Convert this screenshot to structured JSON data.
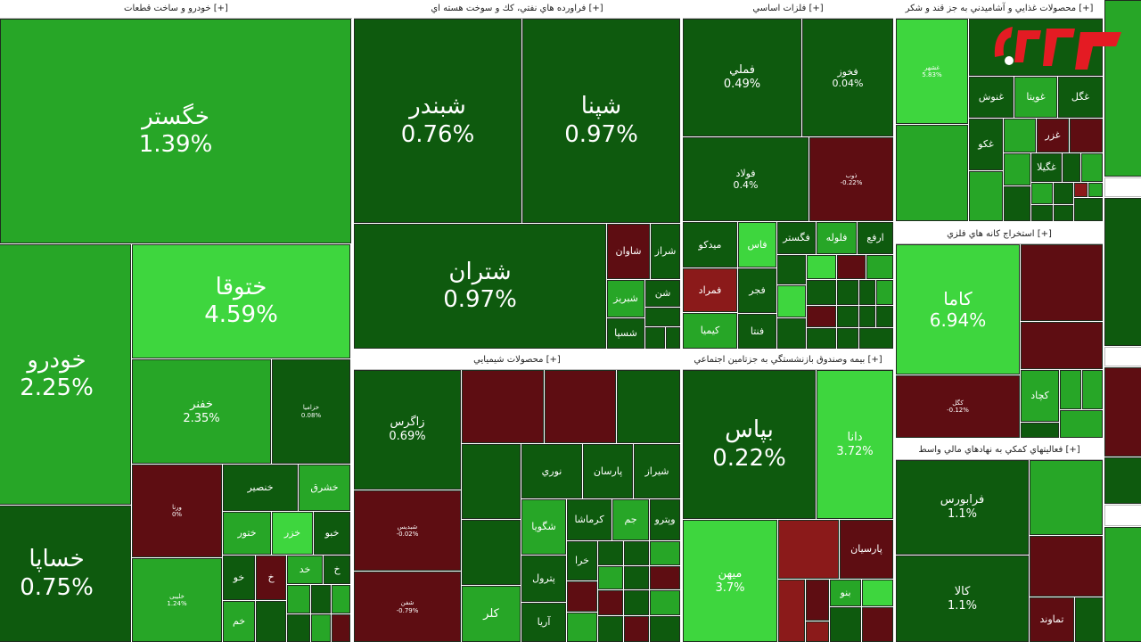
{
  "colors": {
    "dg": "#0e5a0e",
    "mg": "#1f8a1f",
    "g": "#27a627",
    "bg": "#3ed63e",
    "dr": "#5e0d12",
    "mr": "#8b1a1a",
    "logo_red": "#e41b23"
  },
  "sectors": [
    {
      "id": "auto",
      "title": "خودرو و ساخت قطعات [+]"
    },
    {
      "id": "oil",
      "title": "فراورده هاي نفتي، كك و سوخت هسته اي [+]"
    },
    {
      "id": "metal",
      "title": "فلزات اساسي [+]"
    },
    {
      "id": "food",
      "title": "محصولات غذايي و آشاميدني به جز قند و شكر [+]"
    },
    {
      "id": "chem",
      "title": "محصولات شيميايي [+]"
    },
    {
      "id": "ins",
      "title": "بيمه وصندوق بازنشستگي به جزتامين اجتماعي [+]"
    },
    {
      "id": "mine",
      "title": "استخراج كانه هاي فلزي [+]"
    },
    {
      "id": "fin",
      "title": "فعاليتهاي كمكي به نهادهاي مالي واسط [+]"
    }
  ],
  "tiles": [
    {
      "name": "خگستر",
      "pct": "1.39%",
      "c": "g"
    },
    {
      "name": "خودرو",
      "pct": "2.25%",
      "c": "g"
    },
    {
      "name": "ختوقا",
      "pct": "4.59%",
      "c": "bg"
    },
    {
      "name": "خساپا",
      "pct": "0.75%",
      "c": "dg"
    },
    {
      "name": "خفنر",
      "pct": "2.35%",
      "c": "g"
    },
    {
      "name": "خزامیا",
      "pct": "0.08%",
      "c": "dg"
    },
    {
      "name": "ورنا",
      "pct": "0%",
      "c": "dr"
    },
    {
      "name": "خنصير",
      "pct": "",
      "c": "dg"
    },
    {
      "name": "خشرق",
      "pct": "",
      "c": "g"
    },
    {
      "name": "ختور",
      "pct": "",
      "c": "g"
    },
    {
      "name": "خزر",
      "pct": "",
      "c": "bg"
    },
    {
      "name": "خبو",
      "pct": "",
      "c": "dg"
    },
    {
      "name": "خلیبی",
      "pct": "1.24%",
      "c": "g"
    },
    {
      "name": "خو",
      "pct": "",
      "c": "dg"
    },
    {
      "name": "خ",
      "pct": "",
      "c": "dr"
    },
    {
      "name": "خد",
      "pct": "",
      "c": "g"
    },
    {
      "name": "خ",
      "pct": "",
      "c": "dg"
    },
    {
      "name": "خم",
      "pct": "",
      "c": "g"
    },
    {
      "name": "شبندر",
      "pct": "0.76%",
      "c": "dg"
    },
    {
      "name": "شپنا",
      "pct": "0.97%",
      "c": "dg"
    },
    {
      "name": "شتران",
      "pct": "0.97%",
      "c": "dg"
    },
    {
      "name": "شاوان",
      "pct": "",
      "c": "dr"
    },
    {
      "name": "شراز",
      "pct": "",
      "c": "dg"
    },
    {
      "name": "شبریز",
      "pct": "",
      "c": "g"
    },
    {
      "name": "شن",
      "pct": "",
      "c": "dg"
    },
    {
      "name": "شسپا",
      "pct": "",
      "c": "dg"
    },
    {
      "name": "فملي",
      "pct": "0.49%",
      "c": "dg"
    },
    {
      "name": "فخوز",
      "pct": "0.04%",
      "c": "dg"
    },
    {
      "name": "فولاد",
      "pct": "0.4%",
      "c": "dg"
    },
    {
      "name": "ذوب",
      "pct": "-0.22%",
      "c": "dr"
    },
    {
      "name": "ميدكو",
      "pct": "",
      "c": "dg"
    },
    {
      "name": "فاس",
      "pct": "",
      "c": "bg"
    },
    {
      "name": "فگستر",
      "pct": "",
      "c": "dg"
    },
    {
      "name": "فلوله",
      "pct": "",
      "c": "g"
    },
    {
      "name": "ارفع",
      "pct": "",
      "c": "dg"
    },
    {
      "name": "فمراد",
      "pct": "",
      "c": "mr"
    },
    {
      "name": "فجر",
      "pct": "",
      "c": "dg"
    },
    {
      "name": "كيميا",
      "pct": "",
      "c": "g"
    },
    {
      "name": "فنتا",
      "pct": "",
      "c": "dg"
    },
    {
      "name": "زاگرس",
      "pct": "0.69%",
      "c": "dg"
    },
    {
      "name": "شبدیس",
      "pct": "-0.02%",
      "c": "dr"
    },
    {
      "name": "شفن",
      "pct": "-0.79%",
      "c": "dr"
    },
    {
      "name": "نوري",
      "pct": "",
      "c": "dg"
    },
    {
      "name": "پارسان",
      "pct": "",
      "c": "dg"
    },
    {
      "name": "شيراز",
      "pct": "",
      "c": "dg"
    },
    {
      "name": "شگويا",
      "pct": "",
      "c": "g"
    },
    {
      "name": "كرماشا",
      "pct": "",
      "c": "dg"
    },
    {
      "name": "جم",
      "pct": "",
      "c": "g"
    },
    {
      "name": "وپترو",
      "pct": "",
      "c": "dg"
    },
    {
      "name": "پترول",
      "pct": "",
      "c": "dg"
    },
    {
      "name": "كلر",
      "pct": "",
      "c": "g"
    },
    {
      "name": "آريا",
      "pct": "",
      "c": "dg"
    },
    {
      "name": "خرا",
      "pct": "",
      "c": "dg"
    },
    {
      "name": "بپاس",
      "pct": "0.22%",
      "c": "dg"
    },
    {
      "name": "دانا",
      "pct": "3.72%",
      "c": "bg"
    },
    {
      "name": "ميهن",
      "pct": "3.7%",
      "c": "bg"
    },
    {
      "name": "پارسيان",
      "pct": "",
      "c": "dr"
    },
    {
      "name": "بنو",
      "pct": "",
      "c": "g"
    },
    {
      "name": "كاما",
      "pct": "6.94%",
      "c": "bg"
    },
    {
      "name": "كگل",
      "pct": "-0.12%",
      "c": "dr"
    },
    {
      "name": "كچاد",
      "pct": "",
      "c": "g"
    },
    {
      "name": "غشهر",
      "pct": "5.83%",
      "c": "bg"
    },
    {
      "name": "غنوش",
      "pct": "",
      "c": "dg"
    },
    {
      "name": "غويتا",
      "pct": "",
      "c": "g"
    },
    {
      "name": "غگل",
      "pct": "",
      "c": "dg"
    },
    {
      "name": "غكو",
      "pct": "",
      "c": "dg"
    },
    {
      "name": "غزر",
      "pct": "",
      "c": "dr"
    },
    {
      "name": "غگیلا",
      "pct": "",
      "c": "dg"
    },
    {
      "name": "فرابورس",
      "pct": "1.1%",
      "c": "dg"
    },
    {
      "name": "كالا",
      "pct": "1.1%",
      "c": "dg"
    },
    {
      "name": "تماوند",
      "pct": "",
      "c": "dr"
    }
  ]
}
